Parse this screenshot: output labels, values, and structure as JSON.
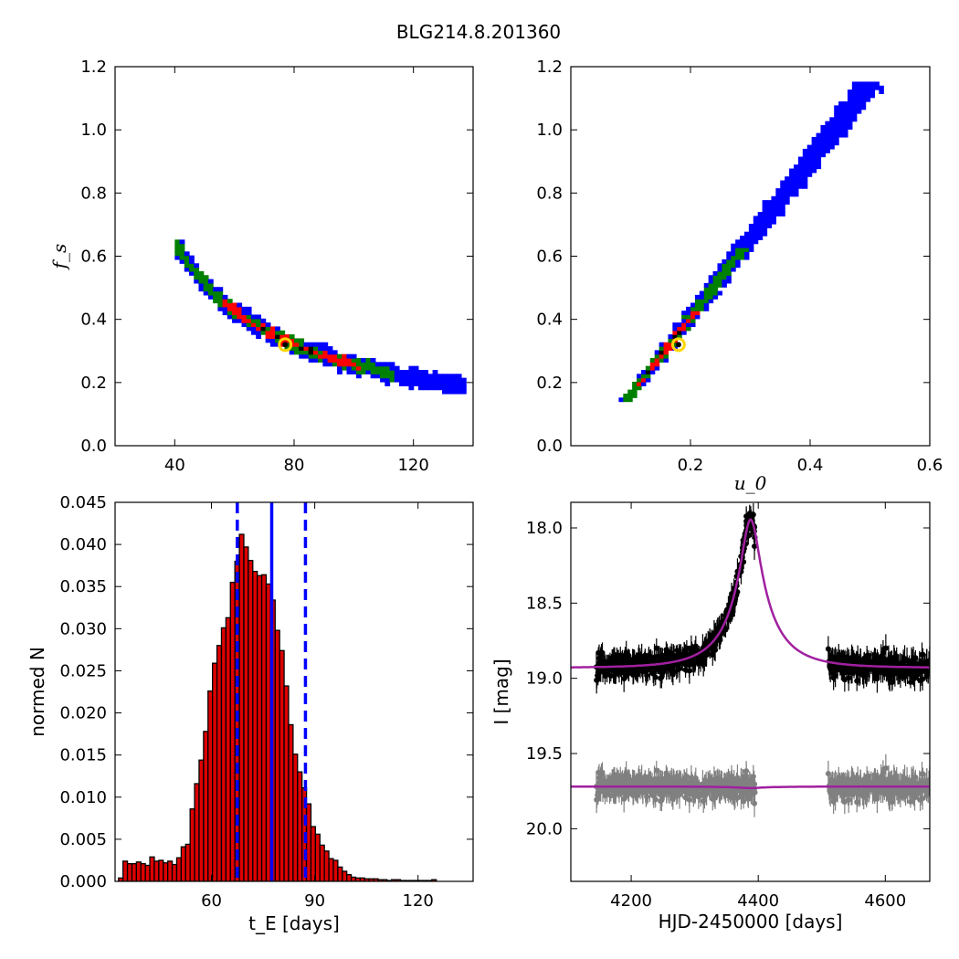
{
  "figure_title": "BLG214.8.201360",
  "colors": {
    "conf_outer": "#0000ff",
    "conf_mid": "#008000",
    "conf_inner": "#ff0000",
    "best_fit": "#000000",
    "marker_edge": "#ffd700",
    "hist_bar": "#dd0000",
    "hist_line": "#0000ff",
    "data_points": "#000000",
    "residuals": "#808080",
    "model": "#a020a0"
  },
  "chart_data": [
    {
      "type": "heatmap",
      "panel": "fs_vs_tE",
      "title": "",
      "xlabel": "",
      "ylabel": "f_s",
      "xlim": [
        20,
        140
      ],
      "ylim": [
        0.0,
        1.2
      ],
      "xticks": [
        "40",
        "80",
        "120"
      ],
      "xtick_values": [
        40,
        80,
        120
      ],
      "yticks": [
        "0.0",
        "0.2",
        "0.4",
        "0.6",
        "0.8",
        "1.0",
        "1.2"
      ],
      "ytick_values": [
        0.0,
        0.2,
        0.4,
        0.6,
        0.8,
        1.0,
        1.2
      ],
      "relation": "f_s ≈ 25 / t_E",
      "regions": [
        {
          "level": "outer",
          "t_E_range": [
            41,
            135
          ],
          "color": "blue"
        },
        {
          "level": "middle",
          "t_E_range": [
            44,
            110
          ],
          "color": "green"
        },
        {
          "level": "inner",
          "t_E_range": [
            55,
            100
          ],
          "color": "red"
        },
        {
          "level": "best",
          "t_E_range": [
            68,
            90
          ],
          "color": "black"
        }
      ],
      "best_fit": {
        "t_E": 77,
        "f_s": 0.32
      }
    },
    {
      "type": "heatmap",
      "panel": "fs_vs_u0",
      "title": "",
      "xlabel": "u_0",
      "ylabel": "",
      "xlim": [
        0.0,
        0.6
      ],
      "ylim": [
        0.0,
        1.2
      ],
      "xticks": [
        "0.2",
        "0.4",
        "0.6"
      ],
      "xtick_values": [
        0.2,
        0.4,
        0.6
      ],
      "yticks": [
        "0.0",
        "0.2",
        "0.4",
        "0.6",
        "0.8",
        "1.0",
        "1.2"
      ],
      "ytick_values": [
        0.0,
        0.2,
        0.4,
        0.6,
        0.8,
        1.0,
        1.2
      ],
      "relation": "f_s rises roughly linearly from 0.15 at u_0 = 0.09 to 1.14 at u_0 = 0.50",
      "best_fit": {
        "u_0": 0.18,
        "f_s": 0.32
      }
    },
    {
      "type": "bar",
      "panel": "tE_histogram",
      "title": "",
      "xlabel": "t_E  [days]",
      "ylabel": "normed N",
      "xlim": [
        32,
        136
      ],
      "ylim": [
        0.0,
        0.045
      ],
      "xticks": [
        "60",
        "90",
        "120"
      ],
      "xtick_values": [
        60,
        90,
        120
      ],
      "yticks": [
        "0.000",
        "0.005",
        "0.010",
        "0.015",
        "0.020",
        "0.025",
        "0.030",
        "0.035",
        "0.040",
        "0.045"
      ],
      "ytick_values": [
        0.0,
        0.005,
        0.01,
        0.015,
        0.02,
        0.025,
        0.03,
        0.035,
        0.04,
        0.045
      ],
      "bin_start": 33,
      "bin_width": 1.3,
      "values": [
        0.0004,
        0.0024,
        0.0021,
        0.0021,
        0.0023,
        0.0021,
        0.0019,
        0.0029,
        0.0024,
        0.0025,
        0.0022,
        0.0024,
        0.002,
        0.0028,
        0.0041,
        0.0044,
        0.0086,
        0.0116,
        0.0144,
        0.0178,
        0.0226,
        0.0259,
        0.028,
        0.0301,
        0.0313,
        0.0355,
        0.038,
        0.0412,
        0.0397,
        0.0381,
        0.0368,
        0.0363,
        0.0364,
        0.0353,
        0.0334,
        0.0298,
        0.0274,
        0.0232,
        0.0186,
        0.0151,
        0.013,
        0.0111,
        0.0092,
        0.0065,
        0.0056,
        0.0043,
        0.0036,
        0.0027,
        0.0025,
        0.0017,
        0.0012,
        0.0008,
        0.0005,
        0.0004,
        0.0004,
        0.0003,
        0.0003,
        0.0003,
        0.0002,
        0.0002,
        0.0001,
        0.0002,
        0.0002,
        0.0001,
        0.0001,
        0.0001,
        0.0001,
        0.0001,
        0.0001,
        0.0001,
        0.0002
      ],
      "median": 77.5,
      "bounds": [
        67.5,
        87.3
      ]
    },
    {
      "type": "scatter",
      "panel": "light_curve",
      "title": "",
      "xlabel": "HJD-2450000 [days]",
      "ylabel": "I [mag]",
      "xlim": [
        4105,
        4670
      ],
      "ylim": [
        20.35,
        17.83
      ],
      "xticks": [
        "4200",
        "4400",
        "4600"
      ],
      "xtick_values": [
        4200,
        4400,
        4600
      ],
      "yticks": [
        "18.0",
        "18.5",
        "19.0",
        "19.5",
        "20.0"
      ],
      "ytick_values": [
        18.0,
        18.5,
        19.0,
        19.5,
        20.0
      ],
      "model": {
        "baseline_mag": 18.93,
        "peak_mag": 17.99,
        "t0": 4388,
        "t_E": 77,
        "u0": 0.18,
        "f_s": 0.32
      },
      "residual_offset": 19.72,
      "observing_seasons": [
        [
          4145,
          4395
        ],
        [
          4510,
          4670
        ]
      ]
    }
  ]
}
